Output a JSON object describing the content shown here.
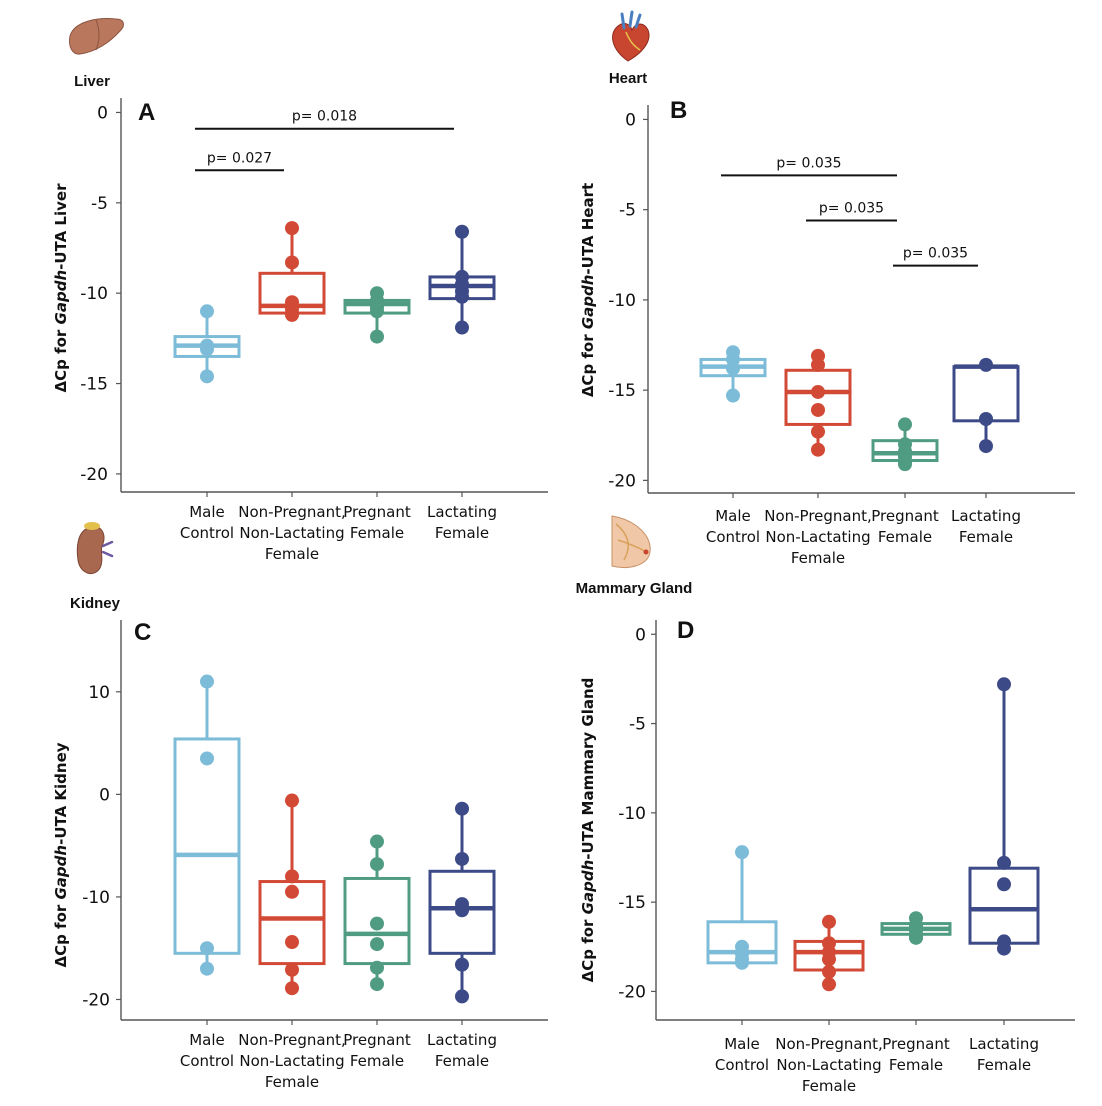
{
  "colors": {
    "Male Control": "#7dbcd8",
    "Non-Pregnant, Non-Lactating Female": "#d24a35",
    "Pregnant Female": "#4f9c82",
    "Lactating Female": "#3d4a88"
  },
  "chart_data": [
    {
      "type": "box",
      "panel": "A",
      "organ": "Liver",
      "organ_icon": "liver-icon",
      "ylabel_prefix": "ΔCp for ",
      "ylabel_gene": "Gapdh",
      "ylabel_suffix": "-UTA Liver",
      "ylim": [
        -21,
        0.8
      ],
      "yticks": [
        0,
        -5,
        -10,
        -15,
        -20
      ],
      "categories": [
        [
          "Male",
          "Control"
        ],
        [
          "Non-Pregnant,",
          "Non-Lactating",
          "Female"
        ],
        [
          "Pregnant",
          "Female"
        ],
        [
          "Lactating",
          "Female"
        ]
      ],
      "series": [
        {
          "name": "Male Control",
          "q1": -13.5,
          "median": -12.9,
          "q3": -12.4,
          "whisker_low": -14.6,
          "whisker_high": -11.0,
          "points": [
            -11.0,
            -12.9,
            -13.1,
            -14.6
          ]
        },
        {
          "name": "Non-Pregnant, Non-Lactating Female",
          "q1": -11.1,
          "median": -10.7,
          "q3": -8.9,
          "whisker_low": -11.2,
          "whisker_high": -6.4,
          "points": [
            -6.4,
            -8.3,
            -10.5,
            -10.9,
            -11.2
          ]
        },
        {
          "name": "Pregnant Female",
          "q1": -11.1,
          "median": -10.6,
          "q3": -10.4,
          "whisker_low": -12.4,
          "whisker_high": -10.0,
          "points": [
            -10.0,
            -10.4,
            -10.8,
            -11.0,
            -12.4
          ]
        },
        {
          "name": "Lactating Female",
          "q1": -10.3,
          "median": -9.6,
          "q3": -9.1,
          "whisker_low": -11.9,
          "whisker_high": -6.6,
          "points": [
            -6.6,
            -9.1,
            -9.5,
            -9.9,
            -10.2,
            -11.9
          ]
        }
      ],
      "brackets": [
        {
          "from": 0,
          "to": 3,
          "y": -0.9,
          "label": "p= 0.018"
        },
        {
          "from": 0,
          "to": 1,
          "y": -3.2,
          "label": "p= 0.027"
        }
      ]
    },
    {
      "type": "box",
      "panel": "B",
      "organ": "Heart",
      "organ_icon": "heart-icon",
      "ylabel_prefix": "ΔCp for ",
      "ylabel_gene": "Gapdh",
      "ylabel_suffix": "-UTA Heart",
      "ylim": [
        -20.7,
        0.8
      ],
      "yticks": [
        0,
        -5,
        -10,
        -15,
        -20
      ],
      "categories": [
        [
          "Male",
          "Control"
        ],
        [
          "Non-Pregnant,",
          "Non-Lactating",
          "Female"
        ],
        [
          "Pregnant",
          "Female"
        ],
        [
          "Lactating",
          "Female"
        ]
      ],
      "series": [
        {
          "name": "Male Control",
          "q1": -14.2,
          "median": -13.7,
          "q3": -13.3,
          "whisker_low": -15.3,
          "whisker_high": -12.9,
          "points": [
            -12.9,
            -13.3,
            -13.8,
            -15.3
          ]
        },
        {
          "name": "Non-Pregnant, Non-Lactating Female",
          "q1": -16.9,
          "median": -15.1,
          "q3": -13.9,
          "whisker_low": -18.3,
          "whisker_high": -13.1,
          "points": [
            -13.1,
            -13.6,
            -15.1,
            -16.1,
            -17.3,
            -18.3
          ]
        },
        {
          "name": "Pregnant Female",
          "q1": -18.9,
          "median": -18.5,
          "q3": -17.8,
          "whisker_low": -19.1,
          "whisker_high": -16.9,
          "points": [
            -16.9,
            -18.0,
            -18.4,
            -18.7,
            -19.0,
            -19.1
          ]
        },
        {
          "name": "Lactating Female",
          "q1": -16.7,
          "median": -13.7,
          "q3": -13.7,
          "whisker_low": -18.1,
          "whisker_high": -13.6,
          "points": [
            -13.6,
            -16.6,
            -18.1
          ]
        }
      ],
      "brackets": [
        {
          "from": 0,
          "to": 2,
          "y": -3.1,
          "label": "p= 0.035"
        },
        {
          "from": 1,
          "to": 2,
          "y": -5.6,
          "label": "p= 0.035"
        },
        {
          "from": 2,
          "to": 3,
          "y": -8.1,
          "label": "p= 0.035"
        }
      ]
    },
    {
      "type": "box",
      "panel": "C",
      "organ": "Kidney",
      "organ_icon": "kidney-icon",
      "ylabel_prefix": "ΔCp for ",
      "ylabel_gene": "Gapdh",
      "ylabel_suffix": "-UTA Kidney",
      "ylim": [
        -22,
        17
      ],
      "yticks": [
        10,
        0,
        -10,
        -20
      ],
      "categories": [
        [
          "Male",
          "Control"
        ],
        [
          "Non-Pregnant,",
          "Non-Lactating",
          "Female"
        ],
        [
          "Pregnant",
          "Female"
        ],
        [
          "Lactating",
          "Female"
        ]
      ],
      "series": [
        {
          "name": "Male Control",
          "q1": -15.5,
          "median": -5.9,
          "q3": 5.4,
          "whisker_low": -17.0,
          "whisker_high": 11.0,
          "points": [
            11.0,
            3.5,
            -15.0,
            -17.0
          ]
        },
        {
          "name": "Non-Pregnant, Non-Lactating Female",
          "q1": -16.5,
          "median": -12.1,
          "q3": -8.5,
          "whisker_low": -18.9,
          "whisker_high": -0.6,
          "points": [
            -0.6,
            -8.0,
            -9.5,
            -14.4,
            -17.1,
            -18.9
          ]
        },
        {
          "name": "Pregnant Female",
          "q1": -16.5,
          "median": -13.6,
          "q3": -8.2,
          "whisker_low": -18.5,
          "whisker_high": -4.6,
          "points": [
            -4.6,
            -6.8,
            -12.6,
            -14.6,
            -16.9,
            -18.5
          ]
        },
        {
          "name": "Lactating Female",
          "q1": -15.5,
          "median": -11.1,
          "q3": -7.5,
          "whisker_low": -19.7,
          "whisker_high": -1.4,
          "points": [
            -1.4,
            -6.3,
            -10.7,
            -11.3,
            -16.6,
            -19.7
          ]
        }
      ],
      "brackets": []
    },
    {
      "type": "box",
      "panel": "D",
      "organ": "Mammary Gland",
      "organ_icon": "mammary-gland-icon",
      "ylabel_prefix": "ΔCp for ",
      "ylabel_gene": "Gapdh",
      "ylabel_suffix": "-UTA Mammary Gland",
      "ylim": [
        -21.6,
        0.8
      ],
      "yticks": [
        0,
        -5,
        -10,
        -15,
        -20
      ],
      "categories": [
        [
          "Male",
          "Control"
        ],
        [
          "Non-Pregnant,",
          "Non-Lactating",
          "Female"
        ],
        [
          "Pregnant",
          "Female"
        ],
        [
          "Lactating",
          "Female"
        ]
      ],
      "series": [
        {
          "name": "Male Control",
          "q1": -18.4,
          "median": -17.8,
          "q3": -16.1,
          "whisker_low": -18.4,
          "whisker_high": -12.2,
          "points": [
            -12.2,
            -17.5,
            -17.9,
            -18.2,
            -18.4
          ]
        },
        {
          "name": "Non-Pregnant, Non-Lactating Female",
          "q1": -18.8,
          "median": -17.8,
          "q3": -17.2,
          "whisker_low": -19.6,
          "whisker_high": -16.1,
          "points": [
            -16.1,
            -17.3,
            -17.8,
            -18.2,
            -18.9,
            -19.6
          ]
        },
        {
          "name": "Pregnant Female",
          "q1": -16.8,
          "median": -16.5,
          "q3": -16.2,
          "whisker_low": -17.0,
          "whisker_high": -15.9,
          "points": [
            -15.9,
            -16.3,
            -16.6,
            -16.9,
            -17.0
          ]
        },
        {
          "name": "Lactating Female",
          "q1": -17.3,
          "median": -15.4,
          "q3": -13.1,
          "whisker_low": -17.6,
          "whisker_high": -2.8,
          "points": [
            -2.8,
            -12.8,
            -14.0,
            -17.2,
            -17.6
          ]
        }
      ],
      "brackets": []
    }
  ]
}
